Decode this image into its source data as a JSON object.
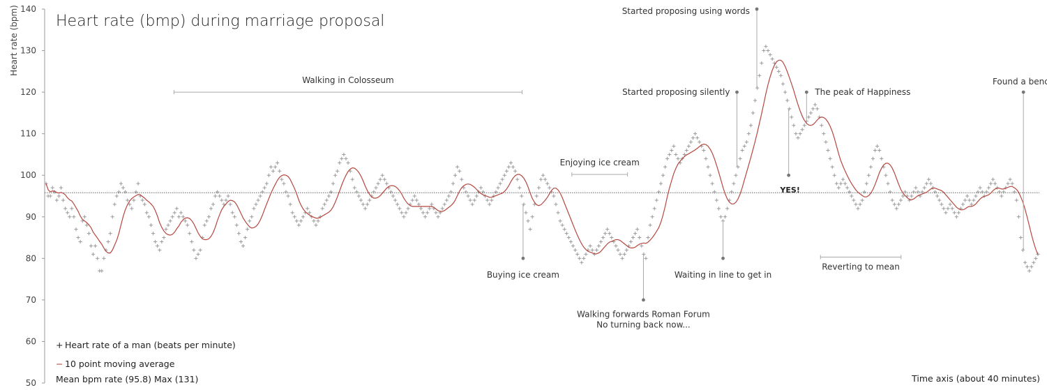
{
  "chart_data": {
    "type": "scatter",
    "title": "Heart rate (bmp) during marriage proposal",
    "ylabel": "Heart rate (bpm)",
    "xlabel": "Time axis (about 40 minutes)",
    "ylim": [
      50,
      140
    ],
    "yticks": [
      50,
      60,
      70,
      80,
      90,
      100,
      110,
      120,
      130,
      140
    ],
    "grid": false,
    "mean_line": 95.8,
    "series": [
      {
        "name": "Heart rate of a man (beats per minute)",
        "marker": "+",
        "color": "#999999",
        "values": [
          98,
          95,
          95,
          97,
          96,
          94,
          95,
          97,
          94,
          92,
          91,
          90,
          92,
          90,
          87,
          85,
          84,
          89,
          90,
          88,
          86,
          83,
          81,
          83,
          80,
          77,
          77,
          80,
          82,
          84,
          86,
          90,
          93,
          95,
          96,
          98,
          97,
          96,
          94,
          93,
          92,
          94,
          96,
          98,
          95,
          94,
          93,
          91,
          90,
          88,
          86,
          84,
          83,
          82,
          84,
          85,
          87,
          88,
          89,
          90,
          91,
          92,
          90,
          91,
          90,
          89,
          88,
          86,
          84,
          82,
          80,
          81,
          82,
          85,
          88,
          89,
          90,
          92,
          93,
          95,
          96,
          95,
          94,
          93,
          94,
          95,
          93,
          91,
          90,
          88,
          86,
          84,
          83,
          85,
          87,
          89,
          90,
          92,
          93,
          94,
          95,
          96,
          97,
          98,
          100,
          102,
          101,
          102,
          103,
          101,
          99,
          98,
          96,
          95,
          93,
          91,
          90,
          89,
          88,
          89,
          90,
          91,
          92,
          91,
          90,
          89,
          88,
          89,
          90,
          92,
          93,
          94,
          95,
          96,
          98,
          100,
          101,
          103,
          104,
          105,
          104,
          103,
          101,
          99,
          97,
          96,
          95,
          94,
          93,
          92,
          93,
          94,
          95,
          96,
          97,
          98,
          99,
          100,
          99,
          98,
          97,
          96,
          95,
          94,
          93,
          92,
          91,
          90,
          91,
          92,
          93,
          94,
          95,
          94,
          93,
          92,
          91,
          90,
          91,
          92,
          93,
          92,
          91,
          90,
          91,
          92,
          93,
          94,
          95,
          96,
          98,
          100,
          102,
          101,
          99,
          97,
          96,
          95,
          94,
          93,
          94,
          95,
          96,
          97,
          96,
          95,
          94,
          93,
          94,
          95,
          96,
          97,
          98,
          99,
          100,
          101,
          102,
          103,
          102,
          101,
          99,
          97,
          95,
          93,
          91,
          89,
          87,
          90,
          93,
          95,
          97,
          99,
          100,
          99,
          98,
          97,
          96,
          95,
          93,
          91,
          89,
          88,
          87,
          86,
          85,
          84,
          83,
          82,
          81,
          80,
          79,
          80,
          81,
          82,
          83,
          82,
          81,
          82,
          83,
          84,
          85,
          86,
          87,
          86,
          85,
          84,
          83,
          82,
          81,
          80,
          81,
          82,
          83,
          84,
          85,
          86,
          87,
          85,
          83,
          81,
          80,
          85,
          88,
          90,
          92,
          94,
          96,
          98,
          100,
          102,
          104,
          105,
          106,
          107,
          105,
          104,
          103,
          104,
          105,
          106,
          107,
          108,
          109,
          110,
          109,
          108,
          107,
          106,
          104,
          102,
          100,
          98,
          96,
          94,
          92,
          90,
          89,
          90,
          92,
          94,
          96,
          98,
          100,
          102,
          104,
          106,
          107,
          108,
          110,
          112,
          115,
          118,
          121,
          124,
          127,
          130,
          131,
          130,
          129,
          128,
          127,
          126,
          125,
          124,
          122,
          120,
          118,
          116,
          114,
          112,
          110,
          109,
          110,
          111,
          112,
          113,
          114,
          115,
          116,
          117,
          116,
          114,
          112,
          110,
          108,
          106,
          104,
          102,
          100,
          98,
          97,
          98,
          99,
          98,
          97,
          96,
          95,
          94,
          93,
          92,
          93,
          94,
          96,
          98,
          100,
          102,
          104,
          106,
          107,
          106,
          104,
          102,
          100,
          98,
          96,
          94,
          93,
          92,
          93,
          94,
          95,
          96,
          95,
          94,
          95,
          96,
          97,
          96,
          95,
          96,
          97,
          98,
          99,
          98,
          97,
          96,
          95,
          94,
          93,
          92,
          91,
          92,
          93,
          92,
          91,
          90,
          91,
          92,
          93,
          94,
          95,
          94,
          93,
          94,
          95,
          96,
          97,
          96,
          95,
          96,
          97,
          98,
          99,
          98,
          97,
          96,
          95,
          96,
          97,
          98,
          99,
          98,
          96,
          94,
          90,
          85,
          82,
          79,
          78,
          77,
          78,
          79,
          80,
          81
        ]
      },
      {
        "name": "10 point moving average",
        "marker": "line",
        "color": "#b5473f"
      }
    ],
    "annotations": [
      {
        "text": "Walking in Colosseum",
        "kind": "range",
        "x1": 0.13,
        "x2": 0.48,
        "y": 120
      },
      {
        "text": "Buying ice cream",
        "kind": "point",
        "x": 0.481,
        "y": 80,
        "label_y": 76
      },
      {
        "text": "Enjoying ice cream",
        "kind": "range",
        "x1": 0.53,
        "x2": 0.586,
        "y": 100.2
      },
      {
        "text": "Walking forwards Roman Forum",
        "kind": "point",
        "x": 0.602,
        "y": 70,
        "label_y": 66.5
      },
      {
        "text": "No turning back now...",
        "kind": "label",
        "x": 0.602,
        "y": 64
      },
      {
        "text": "Started proposing silently",
        "kind": "point",
        "x": 0.696,
        "y": 120,
        "label_y": 120
      },
      {
        "text": "Started proposing  using words",
        "kind": "point",
        "x": 0.716,
        "y": 140,
        "label_y": 139.5
      },
      {
        "text": "Waiting in line to get in",
        "kind": "point",
        "x": 0.682,
        "y": 80,
        "label_y": 76
      },
      {
        "text": "YES!",
        "kind": "point",
        "x": 0.748,
        "y": 100,
        "label_y": 96.5
      },
      {
        "text": "The peak of Happiness",
        "kind": "point",
        "x": 0.766,
        "y": 120,
        "label_y": 120
      },
      {
        "text": "Reverting to mean",
        "kind": "range",
        "x1": 0.78,
        "x2": 0.861,
        "y": 80.3
      },
      {
        "text": "Found a bench",
        "kind": "point",
        "x": 0.984,
        "y": 120,
        "label_y": 122.5
      }
    ]
  },
  "legend": {
    "scatter_label": "Heart rate of a man (beats per minute)",
    "scatter_symbol": "+",
    "line_label": "10 point moving average",
    "line_symbol": "−",
    "stats": "Mean bpm rate (95.8) Max (131)"
  }
}
